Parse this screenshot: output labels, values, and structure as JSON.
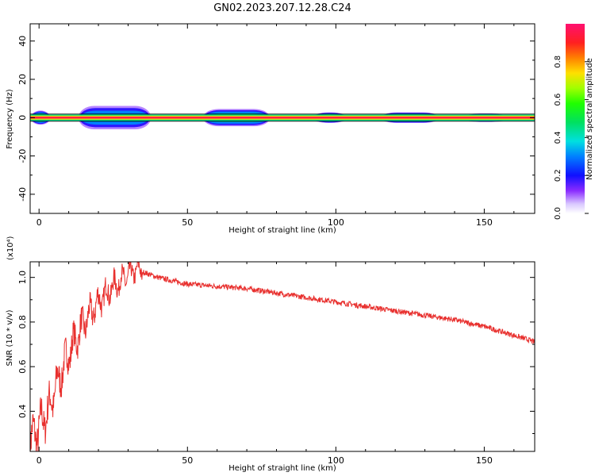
{
  "title": "GN02.2023.207.12.28.C24",
  "chart_data": [
    {
      "type": "heatmap",
      "xlabel": "Height of straight line (km)",
      "ylabel": "Frequency (Hz)",
      "xlim": [
        -3,
        167
      ],
      "ylim": [
        -50,
        49
      ],
      "xticks": [
        0,
        50,
        100,
        150
      ],
      "yticks": [
        40,
        20,
        0,
        -20,
        -40
      ],
      "colorbar": {
        "label": "Normalized spectral amplitude",
        "range": [
          0,
          1
        ],
        "ticks": [
          "0.0",
          "0.2",
          "0.4",
          "0.6",
          "0.8"
        ]
      },
      "blobs": [
        {
          "x": [
            -3,
            4
          ],
          "halfwidth_hz": 2.0,
          "peak": 0.75
        },
        {
          "x": [
            13,
            38
          ],
          "halfwidth_hz": 3.5,
          "peak": 0.45
        },
        {
          "x": [
            55,
            78
          ],
          "halfwidth_hz": 2.5,
          "peak": 0.6
        },
        {
          "x": [
            92,
            104
          ],
          "halfwidth_hz": 1.5,
          "peak": 0.85
        },
        {
          "x": [
            115,
            135
          ],
          "halfwidth_hz": 1.5,
          "peak": 0.85
        },
        {
          "x": [
            143,
            158
          ],
          "halfwidth_hz": 1.2,
          "peak": 0.9
        }
      ],
      "ridge": {
        "frequency_hz": 0,
        "amplitude": 0.95
      }
    },
    {
      "type": "line",
      "xlabel": "Height of straight line (km)",
      "ylabel": "SNR (10 * v/v)",
      "y_multiplier": "(x10⁴)",
      "xlim": [
        -3,
        167
      ],
      "ylim": [
        0.22,
        1.07
      ],
      "xticks": [
        0,
        50,
        100,
        150
      ],
      "yticks": [
        "0.4",
        "0.6",
        "0.8",
        "1.0"
      ],
      "series": [
        {
          "color": "#e8302e",
          "x": [
            -3,
            0,
            3,
            6,
            10,
            15,
            20,
            25,
            30,
            33,
            36,
            40,
            45,
            50,
            55,
            60,
            65,
            70,
            75,
            80,
            85,
            90,
            95,
            100,
            105,
            110,
            115,
            120,
            125,
            130,
            135,
            140,
            145,
            150,
            155,
            160,
            165,
            167
          ],
          "y": [
            0.26,
            0.33,
            0.4,
            0.52,
            0.66,
            0.79,
            0.89,
            0.96,
            1.01,
            1.035,
            1.02,
            1.0,
            0.985,
            0.97,
            0.965,
            0.96,
            0.955,
            0.95,
            0.94,
            0.93,
            0.92,
            0.91,
            0.9,
            0.89,
            0.88,
            0.87,
            0.86,
            0.85,
            0.84,
            0.83,
            0.82,
            0.81,
            0.795,
            0.78,
            0.76,
            0.74,
            0.72,
            0.71
          ]
        }
      ]
    }
  ]
}
